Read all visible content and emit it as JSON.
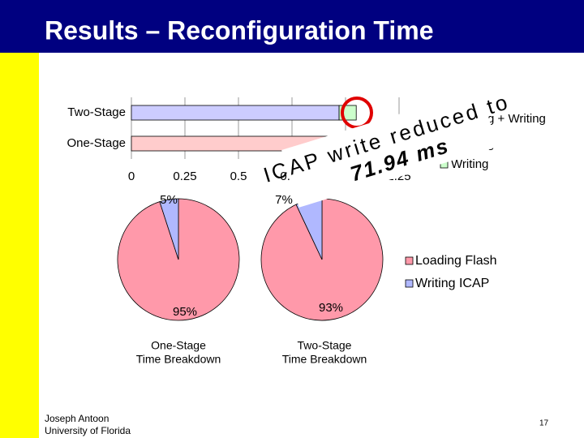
{
  "slide": {
    "title": "Results – Reconfiguration Time",
    "footer_author": [
      "Joseph Antoon",
      "University of Florida"
    ],
    "page_number": "17",
    "annotation": [
      "ICAP write reduced to",
      "71.94 ms"
    ]
  },
  "chart_data": [
    {
      "type": "bar",
      "orientation": "horizontal",
      "stacked": true,
      "categories": [
        "Two-Stage",
        "One-Stage"
      ],
      "series": [
        {
          "name": "Loading + Writing",
          "color": "#ccccff",
          "values": [
            0.97,
            null
          ]
        },
        {
          "name": "Loading",
          "color": "#ffcccc",
          "values": [
            null,
            1.3
          ]
        },
        {
          "name": "Writing",
          "color": "#ccffcc",
          "values": [
            0.08,
            null
          ]
        }
      ],
      "xlim": [
        0,
        1.5
      ],
      "xticks": [
        0,
        0.25,
        0.5,
        0.75,
        1,
        1.25
      ],
      "grid": true
    },
    {
      "type": "pie",
      "title": [
        "One-Stage",
        "Time Breakdown"
      ],
      "categories": [
        "Loading Flash",
        "Writing ICAP"
      ],
      "colors": [
        "#ff99aa",
        "#b0b8ff"
      ],
      "values": [
        95,
        5
      ],
      "value_labels": [
        "95%",
        "5%"
      ]
    },
    {
      "type": "pie",
      "title": [
        "Two-Stage",
        "Time Breakdown"
      ],
      "categories": [
        "Loading Flash",
        "Writing ICAP"
      ],
      "colors": [
        "#ff99aa",
        "#b0b8ff"
      ],
      "values": [
        93,
        7
      ],
      "value_labels": [
        "93%",
        "7%"
      ],
      "legend": true
    }
  ]
}
